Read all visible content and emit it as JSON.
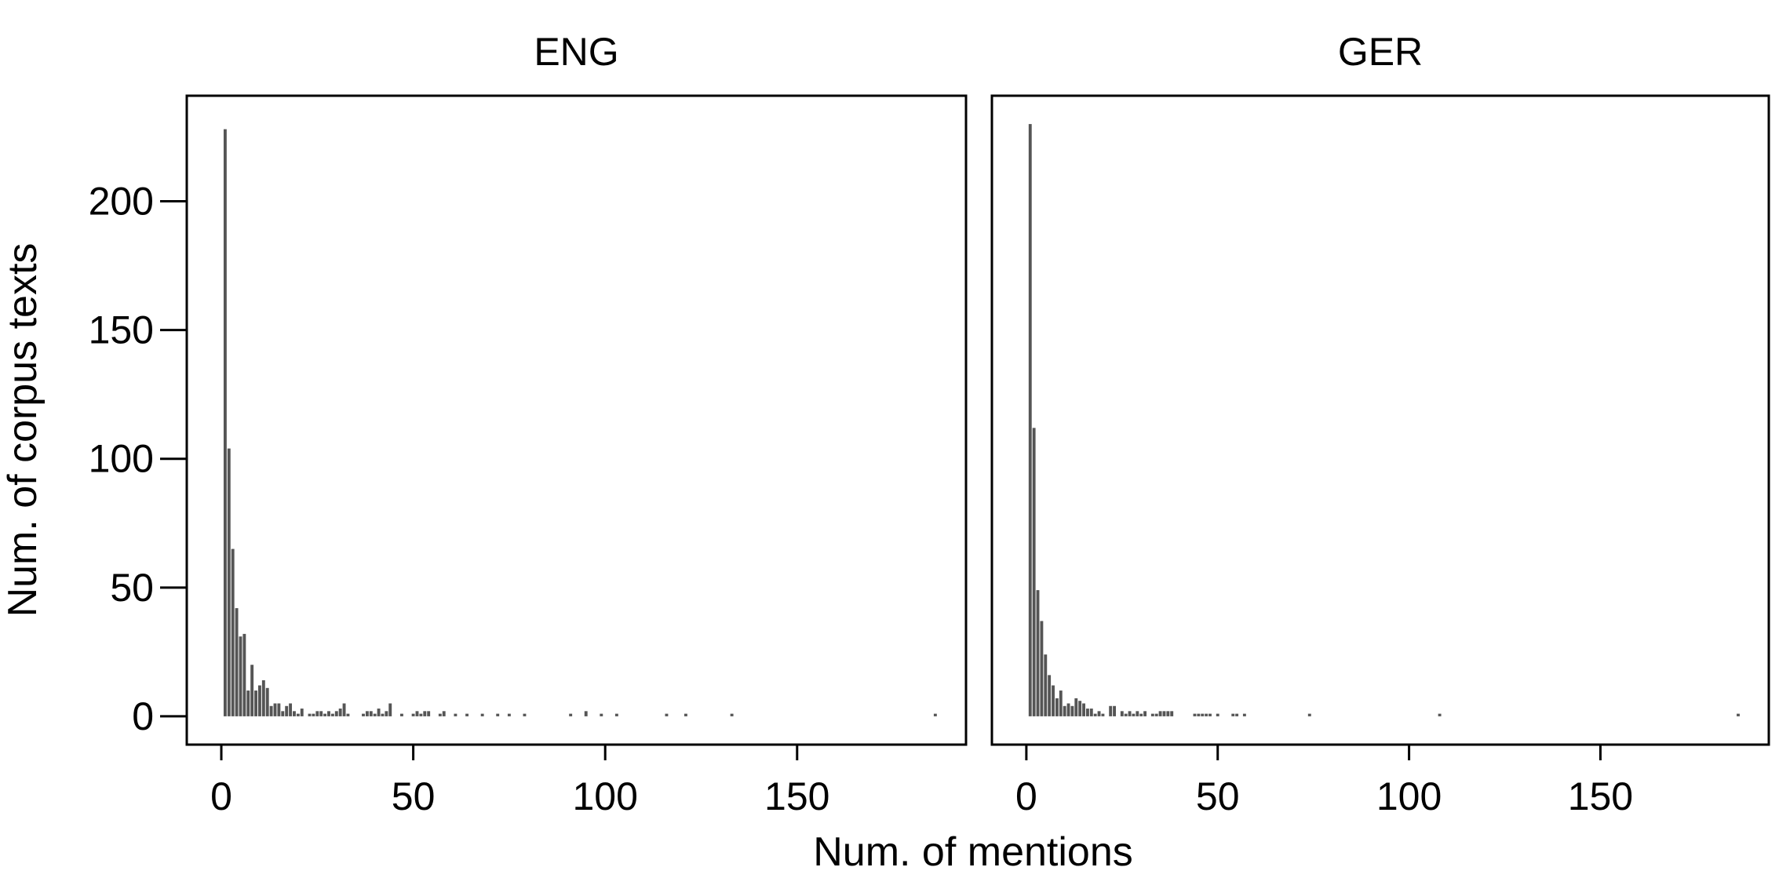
{
  "figure": {
    "xlabel": "Num. of mentions",
    "ylabel": "Num. of corpus texts"
  },
  "chart_data": [
    {
      "type": "bar",
      "title": "ENG",
      "xlabel": "Num. of mentions",
      "ylabel": "Num. of corpus texts",
      "xlim": [
        -9,
        194
      ],
      "ylim": [
        -11,
        241
      ],
      "xticks": [
        0,
        50,
        100,
        150
      ],
      "yticks": [
        0,
        50,
        100,
        150,
        200
      ],
      "grid": false,
      "bar_color": "#555555",
      "x": [
        1,
        2,
        3,
        4,
        5,
        6,
        7,
        8,
        9,
        10,
        11,
        12,
        13,
        14,
        15,
        16,
        17,
        18,
        19,
        20,
        21,
        23,
        24,
        25,
        26,
        27,
        28,
        29,
        30,
        31,
        32,
        33,
        37,
        38,
        39,
        40,
        41,
        42,
        43,
        44,
        47,
        50,
        51,
        52,
        53,
        54,
        57,
        58,
        61,
        64,
        68,
        72,
        75,
        79,
        91,
        95,
        99,
        103,
        116,
        121,
        133,
        186
      ],
      "values": [
        228,
        104,
        65,
        42,
        31,
        32,
        10,
        20,
        10,
        12,
        14,
        11,
        4,
        5,
        5,
        2,
        4,
        5,
        2,
        1,
        3,
        1,
        1,
        2,
        2,
        1,
        2,
        1,
        2,
        3,
        5,
        1,
        1,
        2,
        2,
        1,
        3,
        1,
        2,
        5,
        1,
        1,
        2,
        1,
        2,
        2,
        1,
        2,
        1,
        1,
        1,
        1,
        1,
        1,
        1,
        2,
        1,
        1,
        1,
        1,
        1,
        1
      ]
    },
    {
      "type": "bar",
      "title": "GER",
      "xlabel": "Num. of mentions",
      "ylabel": "Num. of corpus texts",
      "xlim": [
        -9,
        194
      ],
      "ylim": [
        -11,
        241
      ],
      "xticks": [
        0,
        50,
        100,
        150
      ],
      "yticks": [
        0,
        50,
        100,
        150,
        200
      ],
      "grid": false,
      "bar_color": "#555555",
      "x": [
        1,
        2,
        3,
        4,
        5,
        6,
        7,
        8,
        9,
        10,
        11,
        12,
        13,
        14,
        15,
        16,
        17,
        18,
        19,
        20,
        22,
        23,
        25,
        26,
        27,
        28,
        29,
        30,
        31,
        33,
        34,
        35,
        36,
        37,
        38,
        44,
        45,
        46,
        47,
        48,
        50,
        54,
        55,
        57,
        74,
        108,
        186
      ],
      "values": [
        230,
        112,
        49,
        37,
        24,
        16,
        12,
        7,
        10,
        4,
        5,
        4,
        7,
        6,
        5,
        3,
        3,
        1,
        2,
        1,
        4,
        4,
        2,
        1,
        2,
        1,
        2,
        1,
        2,
        1,
        1,
        2,
        2,
        2,
        2,
        1,
        1,
        1,
        1,
        1,
        1,
        1,
        1,
        1,
        1,
        1,
        1
      ]
    }
  ]
}
